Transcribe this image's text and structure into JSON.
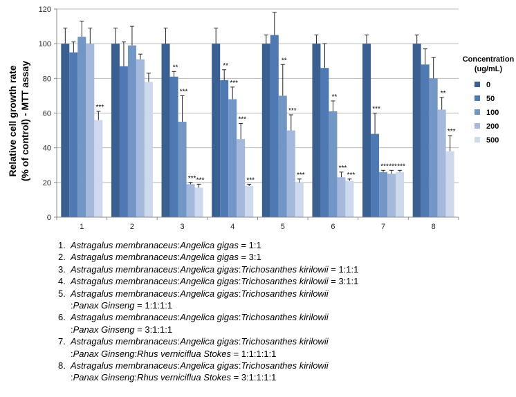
{
  "chart_data": {
    "type": "bar",
    "ylabel_line1": "Relative cell growth rate",
    "ylabel_line2": "(% of control) - MTT assay",
    "ylim": [
      0,
      120
    ],
    "yticks": [
      "0",
      "20",
      "40",
      "60",
      "80",
      "100",
      "120"
    ],
    "grid": true,
    "legend_title_line1": "Concentration",
    "legend_title_line2": "(ug/mL)",
    "legend_placement": "right",
    "categories": [
      "1",
      "2",
      "3",
      "4",
      "5",
      "6",
      "7",
      "8"
    ],
    "series": [
      {
        "name": "0",
        "color": "#3a5f91",
        "values": [
          100,
          100,
          100,
          100,
          100,
          100,
          100,
          100
        ],
        "errors": [
          9,
          9,
          9,
          9,
          5,
          5,
          5,
          5
        ],
        "sig": [
          "",
          "",
          "",
          "",
          "",
          "",
          "",
          ""
        ]
      },
      {
        "name": "50",
        "color": "#4f79b3",
        "values": [
          95,
          87,
          81,
          79,
          105,
          86,
          48,
          88
        ],
        "errors": [
          6,
          14,
          3,
          6,
          13,
          14,
          12,
          9
        ],
        "sig": [
          "",
          "",
          "**",
          "**",
          "",
          "",
          "***",
          ""
        ]
      },
      {
        "name": "100",
        "color": "#7296c6",
        "values": [
          104,
          99,
          55,
          68,
          70,
          61,
          26,
          80
        ],
        "errors": [
          9,
          11,
          15,
          7,
          18,
          6,
          1,
          12
        ],
        "sig": [
          "",
          "",
          "***",
          "***",
          "**",
          "**",
          "***",
          ""
        ]
      },
      {
        "name": "200",
        "color": "#a4b9db",
        "values": [
          100,
          91,
          19,
          45,
          50,
          23,
          25,
          62
        ],
        "errors": [
          9,
          3,
          1,
          9,
          9,
          3,
          2,
          7
        ],
        "sig": [
          "",
          "",
          "***",
          "***",
          "***",
          "***",
          "***",
          "**"
        ]
      },
      {
        "name": "500",
        "color": "#cdd9ec",
        "values": [
          56,
          78,
          17,
          18,
          20,
          21,
          26,
          38
        ],
        "errors": [
          5,
          5,
          2,
          1,
          2,
          1,
          1,
          9
        ],
        "sig": [
          "***",
          "",
          "***",
          "***",
          "***",
          "***",
          "***",
          "***"
        ]
      }
    ]
  },
  "notes": [
    {
      "num": "1.",
      "parts": [
        {
          "t": "Astragalus membranaceus",
          "i": true
        },
        {
          "t": ":",
          "i": false
        },
        {
          "t": "Angelica gigas",
          "i": true
        },
        {
          "t": " = 1:1",
          "i": false
        }
      ]
    },
    {
      "num": "2.",
      "parts": [
        {
          "t": "Astragalus membranaceus",
          "i": true
        },
        {
          "t": ":",
          "i": false
        },
        {
          "t": "Angelica gigas",
          "i": true
        },
        {
          "t": " = 3:1",
          "i": false
        }
      ]
    },
    {
      "num": "3.",
      "parts": [
        {
          "t": "Astragalus membranaceus",
          "i": true
        },
        {
          "t": ":",
          "i": false
        },
        {
          "t": "Angelica gigas",
          "i": true
        },
        {
          "t": ":",
          "i": false
        },
        {
          "t": "Trichosanthes kirilowii",
          "i": true
        },
        {
          "t": " = 1:1:1",
          "i": false
        }
      ]
    },
    {
      "num": "4.",
      "parts": [
        {
          "t": "Astragalus membranaceus",
          "i": true
        },
        {
          "t": ":",
          "i": false
        },
        {
          "t": "Angelica gigas",
          "i": true
        },
        {
          "t": ":",
          "i": false
        },
        {
          "t": "Trichosanthes kirilowii",
          "i": true
        },
        {
          "t": " = 3:1:1",
          "i": false
        }
      ]
    },
    {
      "num": "5.",
      "parts": [
        {
          "t": "Astragalus membranaceus",
          "i": true
        },
        {
          "t": ":",
          "i": false
        },
        {
          "t": "Angelica gigas",
          "i": true
        },
        {
          "t": ":",
          "i": false
        },
        {
          "t": "Trichosanthes kirilowii",
          "i": true
        }
      ],
      "cont": [
        {
          "t": ":",
          "i": false
        },
        {
          "t": "Panax Ginseng",
          "i": true
        },
        {
          "t": " = 1:1:1:1",
          "i": false
        }
      ]
    },
    {
      "num": "6.",
      "parts": [
        {
          "t": "Astragalus membranaceus",
          "i": true
        },
        {
          "t": ":",
          "i": false
        },
        {
          "t": "Angelica gigas",
          "i": true
        },
        {
          "t": ":",
          "i": false
        },
        {
          "t": "Trichosanthes kirilowii",
          "i": true
        }
      ],
      "cont": [
        {
          "t": ":",
          "i": false
        },
        {
          "t": "Panax Ginseng",
          "i": true
        },
        {
          "t": " = 3:1:1:1",
          "i": false
        }
      ]
    },
    {
      "num": "7.",
      "parts": [
        {
          "t": "Astragalus membranaceus",
          "i": true
        },
        {
          "t": ":",
          "i": false
        },
        {
          "t": "Angelica gigas",
          "i": true
        },
        {
          "t": ":",
          "i": false
        },
        {
          "t": "Trichosanthes kirilowii",
          "i": true
        }
      ],
      "cont": [
        {
          "t": ":",
          "i": false
        },
        {
          "t": "Panax Ginseng",
          "i": true
        },
        {
          "t": ":",
          "i": false
        },
        {
          "t": "Rhus verniciflua Stokes",
          "i": true
        },
        {
          "t": " = 1:1:1:1:1",
          "i": false
        }
      ]
    },
    {
      "num": "8.",
      "parts": [
        {
          "t": "Astragalus membranaceus",
          "i": true
        },
        {
          "t": ":",
          "i": false
        },
        {
          "t": "Angelica gigas",
          "i": true
        },
        {
          "t": ":",
          "i": false
        },
        {
          "t": "Trichosanthes kirilowii",
          "i": true
        }
      ],
      "cont": [
        {
          "t": ":",
          "i": false
        },
        {
          "t": "Panax Ginseng",
          "i": true
        },
        {
          "t": ":",
          "i": false
        },
        {
          "t": "Rhus verniciflua Stokes",
          "i": true
        },
        {
          "t": " = 3:1:1:1:1",
          "i": false
        }
      ]
    }
  ]
}
